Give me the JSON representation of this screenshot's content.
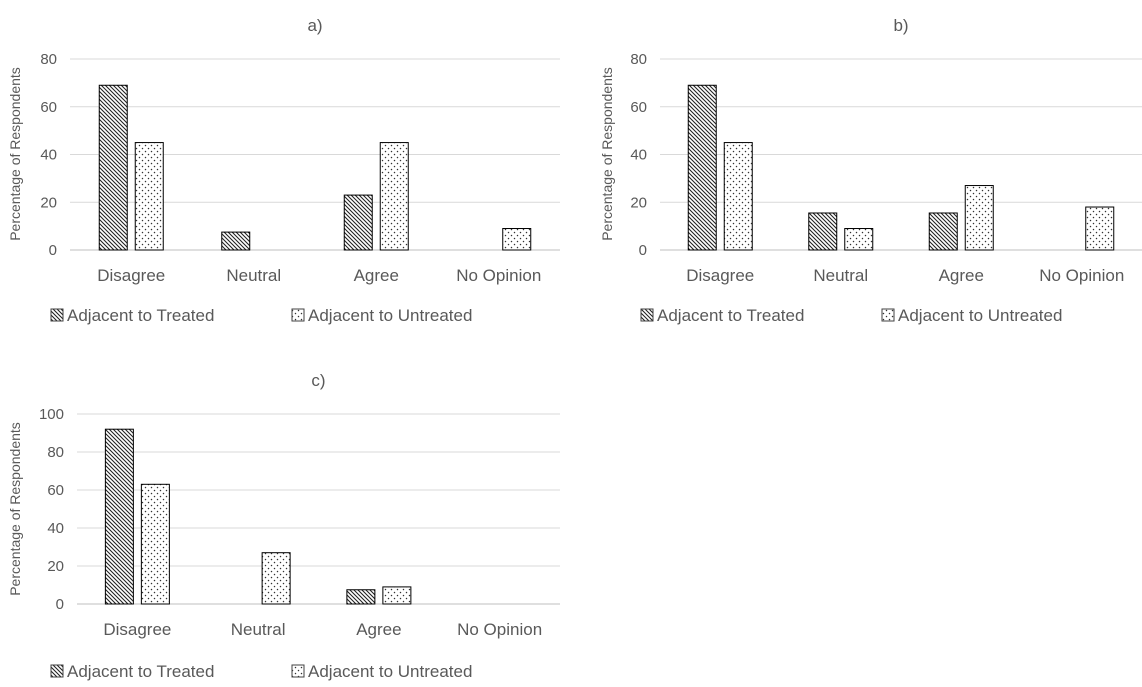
{
  "figure": {
    "legend_labels": [
      "Adjacent to Treated",
      "Adjacent to Untreated"
    ],
    "colors": {
      "text": "#595959",
      "grid": "#d9d9d9",
      "bar_stroke": "#000000",
      "fill": "#ffffff"
    }
  },
  "chart_data": [
    {
      "type": "bar",
      "title": "a)",
      "ylabel": "Percentage of Respondents",
      "xlabel": "",
      "categories": [
        "Disagree",
        "Neutral",
        "Agree",
        "No Opinion"
      ],
      "yticks": [
        0,
        20,
        40,
        60,
        80
      ],
      "ylim": [
        0,
        80
      ],
      "grid": true,
      "legend_position": "bottom",
      "series": [
        {
          "name": "Adjacent to Treated",
          "values": [
            69,
            7.5,
            23,
            0
          ],
          "pattern": "diagonal-hatch"
        },
        {
          "name": "Adjacent to Untreated",
          "values": [
            45,
            0,
            45,
            9
          ],
          "pattern": "dots"
        }
      ]
    },
    {
      "type": "bar",
      "title": "b)",
      "ylabel": "Percentage of Respondents",
      "xlabel": "",
      "categories": [
        "Disagree",
        "Neutral",
        "Agree",
        "No Opinion"
      ],
      "yticks": [
        0,
        20,
        40,
        60,
        80
      ],
      "ylim": [
        0,
        80
      ],
      "grid": true,
      "legend_position": "bottom",
      "series": [
        {
          "name": "Adjacent to Treated",
          "values": [
            69,
            15.5,
            15.5,
            0
          ],
          "pattern": "diagonal-hatch"
        },
        {
          "name": "Adjacent to Untreated",
          "values": [
            45,
            9,
            27,
            18
          ],
          "pattern": "dots"
        }
      ]
    },
    {
      "type": "bar",
      "title": "c)",
      "ylabel": "Percentage of Respondents",
      "xlabel": "",
      "categories": [
        "Disagree",
        "Neutral",
        "Agree",
        "No Opinion"
      ],
      "yticks": [
        0,
        20,
        40,
        60,
        80,
        100
      ],
      "ylim": [
        0,
        100
      ],
      "grid": true,
      "legend_position": "bottom",
      "series": [
        {
          "name": "Adjacent to Treated",
          "values": [
            92,
            0,
            7.5,
            0
          ],
          "pattern": "diagonal-hatch"
        },
        {
          "name": "Adjacent to Untreated",
          "values": [
            63,
            27,
            9,
            0
          ],
          "pattern": "dots"
        }
      ]
    }
  ]
}
